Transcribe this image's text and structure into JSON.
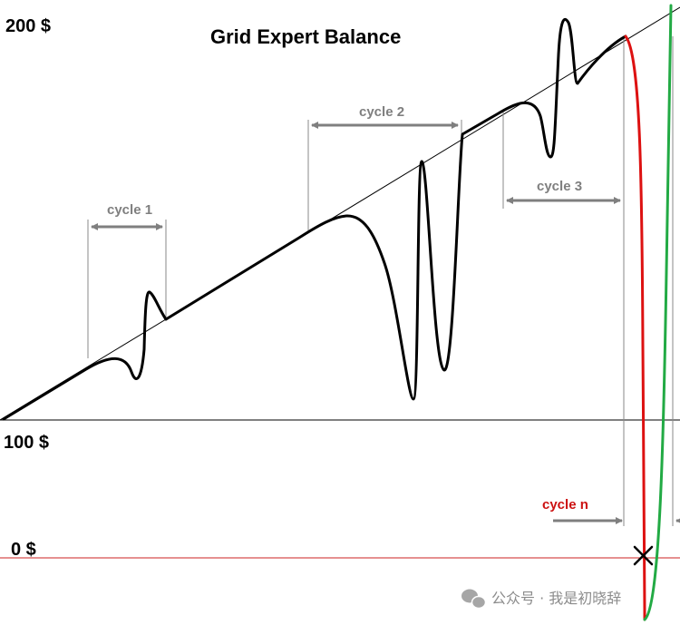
{
  "title": "Grid Expert Balance",
  "axis_labels": {
    "top": "200 $",
    "middle": "100 $",
    "bottom": "0 $"
  },
  "cycles": [
    {
      "label": "cycle 1"
    },
    {
      "label": "cycle 2"
    },
    {
      "label": "cycle 3"
    },
    {
      "label": "cycle n"
    }
  ],
  "watermark": "公众号 · 我是初晓辞",
  "colors": {
    "balance_curve": "#000000",
    "failure_curve": "#dd1111",
    "alternative_curve": "#22aa44",
    "cycle_marker": "#7f7f7f",
    "cycle_n_label": "#cc1111",
    "zero_line": "#cc2222"
  },
  "icons": {
    "failure_marker": "cross-icon",
    "watermark_logo": "wechat-icon"
  }
}
